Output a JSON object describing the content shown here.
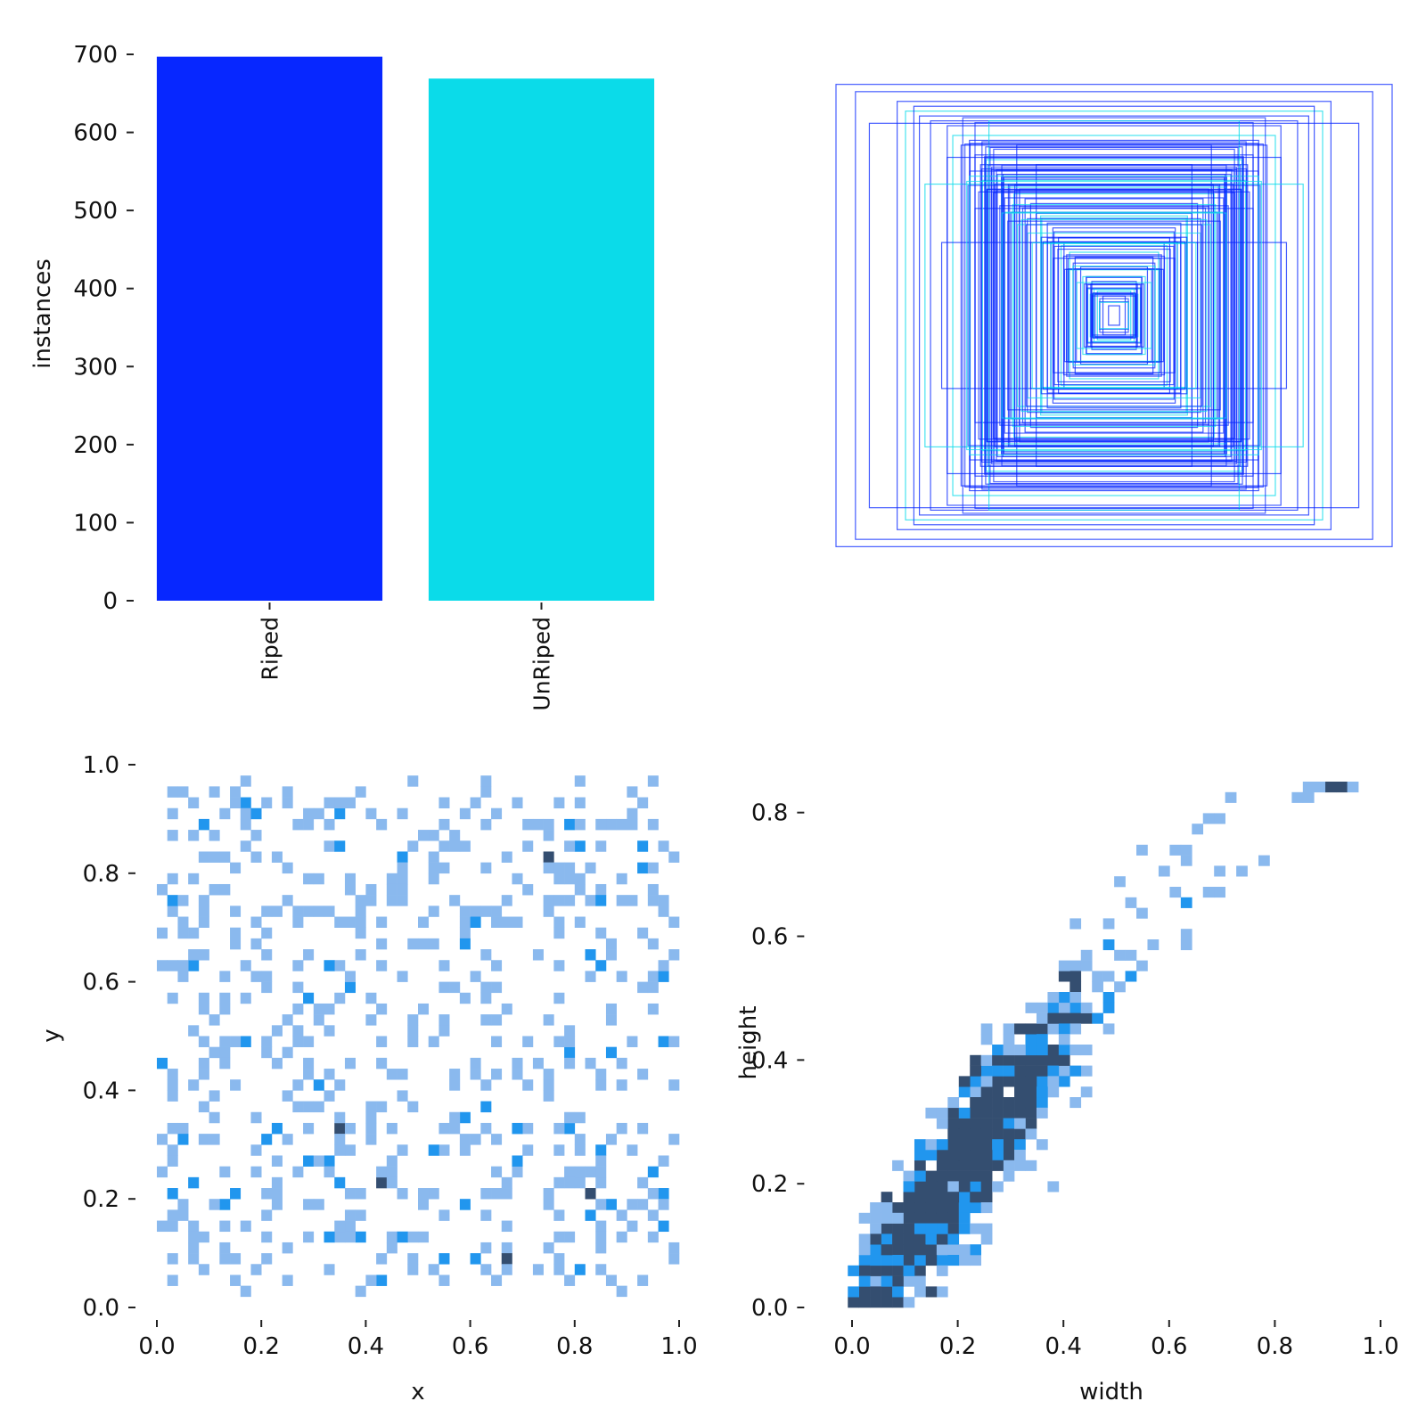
{
  "chart_data": [
    {
      "type": "bar",
      "panel": "labels",
      "categories": [
        "Riped",
        "UnRiped"
      ],
      "values": [
        697,
        669
      ],
      "colors": [
        "#0727ff",
        "#0bdbe9"
      ],
      "xlabel": "",
      "ylabel": "instances",
      "ylim": [
        0,
        700
      ],
      "yticks": [
        0,
        100,
        200,
        300,
        400,
        500,
        600,
        700
      ],
      "grid": false
    },
    {
      "type": "other",
      "panel": "bounding-box overlay",
      "description_free": true,
      "box_sizes": [
        [
          1.0,
          0.95
        ],
        [
          0.93,
          0.92
        ],
        [
          0.78,
          0.88
        ],
        [
          0.75,
          0.84
        ],
        [
          0.72,
          0.86
        ],
        [
          0.7,
          0.82
        ],
        [
          0.66,
          0.8
        ],
        [
          0.6,
          0.78
        ],
        [
          0.58,
          0.74
        ],
        [
          0.55,
          0.7
        ],
        [
          0.52,
          0.72
        ],
        [
          0.5,
          0.66
        ],
        [
          0.48,
          0.62
        ],
        [
          0.46,
          0.64
        ],
        [
          0.44,
          0.6
        ],
        [
          0.42,
          0.58
        ],
        [
          0.4,
          0.56
        ],
        [
          0.38,
          0.54
        ],
        [
          0.36,
          0.5
        ],
        [
          0.34,
          0.52
        ],
        [
          0.32,
          0.48
        ],
        [
          0.3,
          0.46
        ],
        [
          0.28,
          0.42
        ],
        [
          0.26,
          0.4
        ],
        [
          0.24,
          0.38
        ],
        [
          0.22,
          0.36
        ],
        [
          0.2,
          0.32
        ],
        [
          0.18,
          0.3
        ],
        [
          0.16,
          0.26
        ],
        [
          0.14,
          0.24
        ],
        [
          0.12,
          0.2
        ],
        [
          0.1,
          0.16
        ],
        [
          0.08,
          0.14
        ],
        [
          0.06,
          0.1
        ],
        [
          0.04,
          0.08
        ],
        [
          0.02,
          0.04
        ],
        [
          0.88,
          0.79
        ],
        [
          0.6,
          0.65
        ],
        [
          0.45,
          0.8
        ],
        [
          0.35,
          0.7
        ],
        [
          0.62,
          0.3
        ],
        [
          0.28,
          0.62
        ],
        [
          0.5,
          0.44
        ],
        [
          0.68,
          0.54
        ],
        [
          0.3,
          0.3
        ]
      ],
      "box_colors": [
        "#0727ff",
        "#0bdbe9"
      ]
    },
    {
      "type": "heatmap",
      "panel": "x-y",
      "xlabel": "x",
      "ylabel": "y",
      "xlim": [
        0,
        1
      ],
      "ylim": [
        0,
        1
      ],
      "xticks": [
        0.0,
        0.2,
        0.4,
        0.6,
        0.8,
        1.0
      ],
      "yticks": [
        0.0,
        0.2,
        0.4,
        0.6,
        0.8,
        1.0
      ],
      "bins": 50,
      "points_approx": 1366,
      "distribution": "roughly uniform over x in [0.01, 0.99], y in [0.02, 0.97]",
      "colors": [
        "#8ab9ee",
        "#2196ee",
        "#344e70"
      ]
    },
    {
      "type": "heatmap",
      "panel": "width-height",
      "xlabel": "width",
      "ylabel": "height",
      "xlim": [
        -0.05,
        1.0
      ],
      "ylim": [
        0,
        0.85
      ],
      "xticks": [
        0.0,
        0.2,
        0.4,
        0.6,
        0.8,
        1.0
      ],
      "yticks": [
        0.0,
        0.2,
        0.4,
        0.6,
        0.8
      ],
      "bins": 50,
      "points_approx": 1366,
      "distribution": "height roughly 1.1 × width with spread; concentrated at width 0.05–0.4",
      "colors": [
        "#8ab9ee",
        "#2196ee",
        "#344e70"
      ]
    }
  ]
}
